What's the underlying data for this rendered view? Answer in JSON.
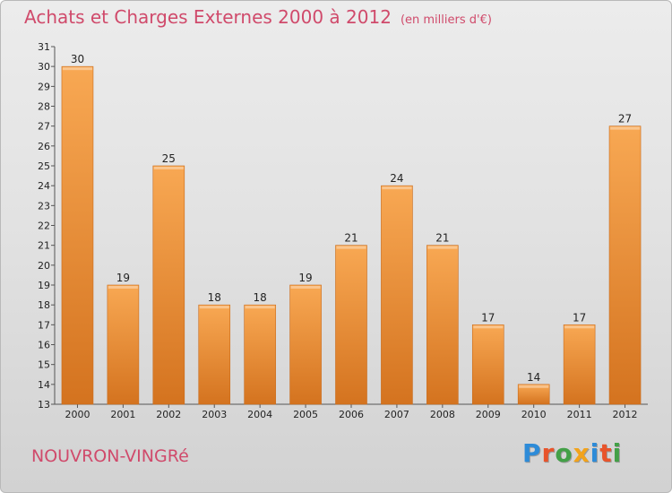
{
  "title": "Achats et Charges Externes 2000 à 2012",
  "unit": "(en milliers d'€)",
  "commune": "NOUVRON-VINGRé",
  "logo": {
    "text": "Proxiti",
    "colors": [
      "#2d8bd8",
      "#e8542b",
      "#43a047",
      "#f2a31b",
      "#2d8bd8",
      "#e8542b",
      "#43a047"
    ]
  },
  "colors": {
    "bar_light": "#f8a853",
    "bar_dark": "#d4731f",
    "title": "#d04a6b"
  },
  "chart_data": {
    "type": "bar",
    "title": "Achats et Charges Externes 2000 à 2012",
    "xlabel": "",
    "ylabel": "",
    "ylim": [
      13,
      31
    ],
    "yticks": [
      13,
      14,
      15,
      16,
      17,
      18,
      19,
      20,
      21,
      22,
      23,
      24,
      25,
      26,
      27,
      28,
      29,
      30,
      31
    ],
    "grid": false,
    "categories": [
      "2000",
      "2001",
      "2002",
      "2003",
      "2004",
      "2005",
      "2006",
      "2007",
      "2008",
      "2009",
      "2010",
      "2011",
      "2012"
    ],
    "values": [
      30,
      19,
      25,
      18,
      18,
      19,
      21,
      24,
      21,
      17,
      14,
      17,
      27
    ]
  }
}
